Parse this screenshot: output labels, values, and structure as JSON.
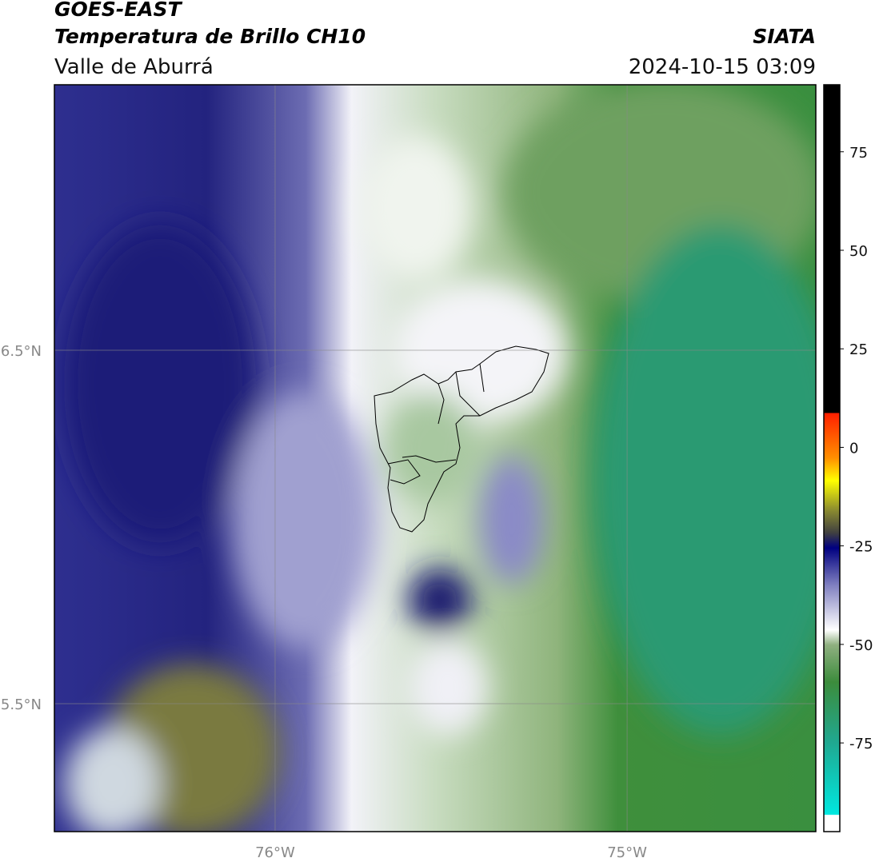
{
  "header": {
    "title": "GOES-EAST",
    "subtitle": "Temperatura de Brillo CH10",
    "region": "Valle de Aburrá",
    "source": "SIATA",
    "datetime": "2024-10-15 03:09"
  },
  "map": {
    "lon_range": [
      -76.627,
      -74.464
    ],
    "lat_range": [
      5.138,
      7.251
    ],
    "lon_ticks": [
      {
        "value": -76,
        "label": "76°W"
      },
      {
        "value": -75,
        "label": "75°W"
      }
    ],
    "lat_ticks": [
      {
        "value": 6.5,
        "label": "6.5°N"
      },
      {
        "value": 5.5,
        "label": "5.5°N"
      }
    ]
  },
  "colorbar": {
    "lim": [
      -97.5,
      92
    ],
    "ticks": [
      75,
      50,
      25,
      0,
      -25,
      -50,
      -75
    ]
  }
}
